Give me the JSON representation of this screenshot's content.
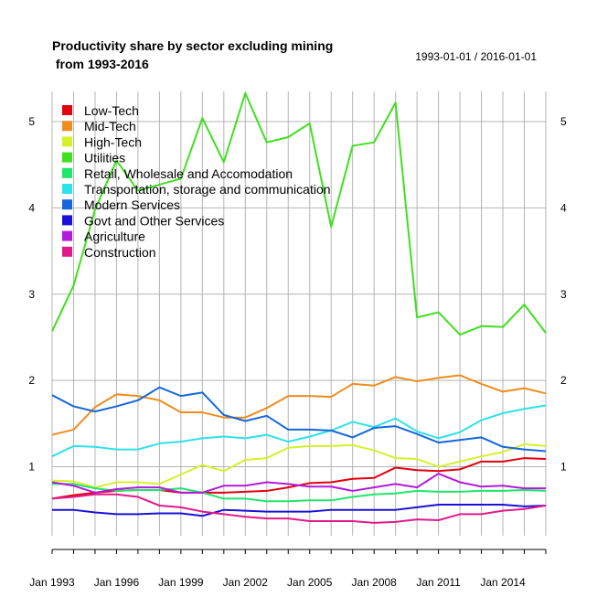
{
  "chart_data": {
    "type": "line",
    "title_line1": "Productivity share by sector excluding mining",
    "title_line2": " from 1993-2016",
    "date_range": "1993-01-01 / 2016-01-01",
    "x": [
      1993,
      1994,
      1995,
      1996,
      1997,
      1998,
      1999,
      2000,
      2001,
      2002,
      2003,
      2004,
      2005,
      2006,
      2007,
      2008,
      2009,
      2010,
      2011,
      2012,
      2013,
      2014,
      2015,
      2016
    ],
    "xlim": [
      1993,
      2016
    ],
    "ylim": [
      0.2,
      5.35
    ],
    "y_ticks": [
      1,
      2,
      3,
      4,
      5
    ],
    "x_ticks": [
      {
        "value": 1993,
        "label": "Jan 1993"
      },
      {
        "value": 1996,
        "label": "Jan 1996"
      },
      {
        "value": 1999,
        "label": "Jan 1999"
      },
      {
        "value": 2002,
        "label": "Jan 2002"
      },
      {
        "value": 2005,
        "label": "Jan 2005"
      },
      {
        "value": 2008,
        "label": "Jan 2008"
      },
      {
        "value": 2011,
        "label": "Jan 2011"
      },
      {
        "value": 2014,
        "label": "Jan 2014"
      }
    ],
    "grid": true,
    "legend_position": "top-left",
    "series": [
      {
        "name": "Low-Tech",
        "color": "#e3000f",
        "values": [
          0.63,
          0.67,
          0.7,
          0.72,
          0.73,
          0.73,
          0.7,
          0.7,
          0.7,
          0.71,
          0.72,
          0.76,
          0.81,
          0.82,
          0.86,
          0.87,
          0.99,
          0.96,
          0.95,
          0.97,
          1.06,
          1.06,
          1.1,
          1.09
        ]
      },
      {
        "name": "Mid-Tech",
        "color": "#f08c1c",
        "values": [
          1.37,
          1.43,
          1.69,
          1.84,
          1.82,
          1.77,
          1.63,
          1.63,
          1.57,
          1.57,
          1.68,
          1.82,
          1.82,
          1.81,
          1.96,
          1.94,
          2.04,
          1.99,
          2.03,
          2.06,
          1.96,
          1.87,
          1.91,
          1.85
        ]
      },
      {
        "name": "High-Tech",
        "color": "#d6f02a",
        "values": [
          0.84,
          0.83,
          0.76,
          0.82,
          0.82,
          0.8,
          0.91,
          1.02,
          0.95,
          1.08,
          1.1,
          1.22,
          1.24,
          1.24,
          1.25,
          1.19,
          1.1,
          1.09,
          1.0,
          1.06,
          1.12,
          1.17,
          1.26,
          1.24
        ]
      },
      {
        "name": "Utilities",
        "color": "#3fe01f",
        "values": [
          2.57,
          3.1,
          3.98,
          4.55,
          4.2,
          4.27,
          4.34,
          5.04,
          4.53,
          5.33,
          4.76,
          4.82,
          4.98,
          3.78,
          4.72,
          4.76,
          5.22,
          2.73,
          2.79,
          2.53,
          2.63,
          2.62,
          2.88,
          2.55
        ]
      },
      {
        "name": "Retail, Wholesale and Accomodation",
        "color": "#1ee66c",
        "values": [
          0.8,
          0.8,
          0.75,
          0.72,
          0.73,
          0.73,
          0.75,
          0.7,
          0.63,
          0.63,
          0.6,
          0.6,
          0.61,
          0.61,
          0.65,
          0.68,
          0.69,
          0.72,
          0.71,
          0.71,
          0.72,
          0.72,
          0.73,
          0.72
        ]
      },
      {
        "name": "Transportation, storage and communication",
        "color": "#2de2ea",
        "values": [
          1.12,
          1.24,
          1.23,
          1.2,
          1.2,
          1.27,
          1.29,
          1.33,
          1.35,
          1.33,
          1.37,
          1.29,
          1.35,
          1.42,
          1.52,
          1.46,
          1.56,
          1.41,
          1.33,
          1.4,
          1.54,
          1.62,
          1.67,
          1.71
        ]
      },
      {
        "name": "Modern Services",
        "color": "#1567db",
        "values": [
          1.83,
          1.7,
          1.64,
          1.7,
          1.77,
          1.92,
          1.82,
          1.86,
          1.6,
          1.53,
          1.59,
          1.43,
          1.43,
          1.42,
          1.34,
          1.45,
          1.47,
          1.38,
          1.28,
          1.31,
          1.34,
          1.23,
          1.2,
          1.18
        ]
      },
      {
        "name": "Govt and Other Services",
        "color": "#1a11d6",
        "values": [
          0.5,
          0.5,
          0.47,
          0.45,
          0.45,
          0.46,
          0.46,
          0.43,
          0.5,
          0.49,
          0.48,
          0.48,
          0.48,
          0.5,
          0.5,
          0.5,
          0.5,
          0.53,
          0.56,
          0.56,
          0.56,
          0.56,
          0.54,
          0.55
        ]
      },
      {
        "name": "Agriculture",
        "color": "#b21bd9",
        "values": [
          0.82,
          0.78,
          0.7,
          0.74,
          0.76,
          0.76,
          0.7,
          0.7,
          0.78,
          0.78,
          0.82,
          0.8,
          0.77,
          0.77,
          0.72,
          0.76,
          0.8,
          0.76,
          0.92,
          0.82,
          0.77,
          0.78,
          0.75,
          0.75
        ]
      },
      {
        "name": "Construction",
        "color": "#e01a8c",
        "values": [
          0.63,
          0.65,
          0.68,
          0.68,
          0.65,
          0.55,
          0.53,
          0.48,
          0.45,
          0.42,
          0.4,
          0.4,
          0.37,
          0.37,
          0.37,
          0.35,
          0.36,
          0.39,
          0.38,
          0.45,
          0.45,
          0.49,
          0.51,
          0.55
        ]
      }
    ]
  }
}
